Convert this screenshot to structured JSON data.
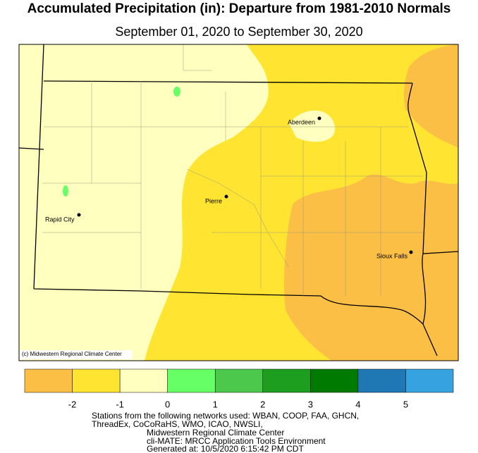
{
  "header": {
    "title": "Accumulated Precipitation (in): Departure from 1981-2010 Normals",
    "subtitle": "September 01, 2020 to September 30, 2020"
  },
  "map": {
    "cities": [
      {
        "name": "Aberdeen"
      },
      {
        "name": "Pierre"
      },
      {
        "name": "Rapid City"
      },
      {
        "name": "Sioux Falls"
      }
    ],
    "credit": "(c) Midwestern Regional Climate Center"
  },
  "legend": {
    "colors": [
      "#fbbf45",
      "#ffe531",
      "#ffffc0",
      "#66ff66",
      "#4cc94c",
      "#1e9e1e",
      "#007a00",
      "#1f78b4",
      "#36a2e0"
    ],
    "ticks": [
      -2,
      -1,
      0,
      1,
      2,
      3,
      4,
      5
    ]
  },
  "footer": {
    "lines": [
      "Stations from the following networks used: WBAN, COOP, FAA, GHCN,",
      "ThreadEx, CoCoRaHS, WMO, ICAO, NWSLI,",
      "Midwestern Regional Climate Center",
      "cli-MATE: MRCC Application Tools Environment",
      "Generated at: 10/5/2020 6:15:42 PM CDT"
    ]
  }
}
